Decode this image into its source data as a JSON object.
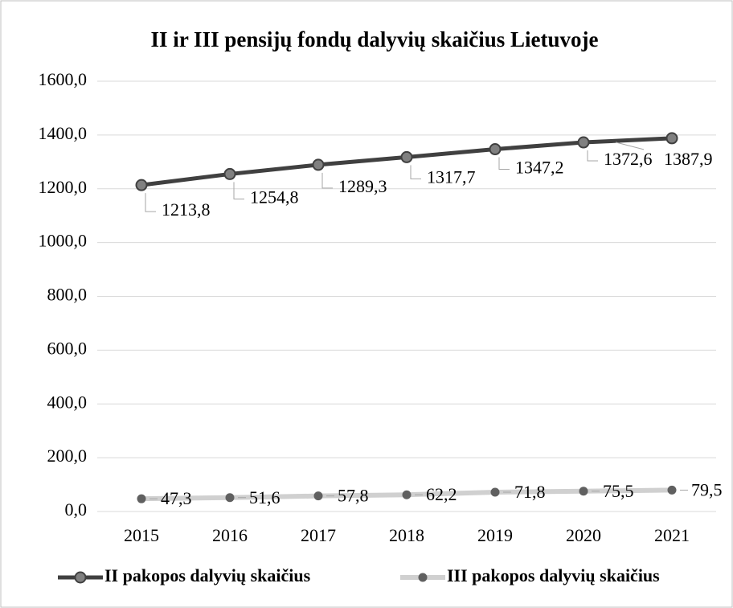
{
  "chart_data": {
    "type": "line",
    "title": "II ir III pensijų fondų dalyvių skaičius Lietuvoje",
    "categories": [
      "2015",
      "2016",
      "2017",
      "2018",
      "2019",
      "2020",
      "2021"
    ],
    "series": [
      {
        "name": "II pakopos dalyvių skaičius",
        "color": "#404040",
        "marker_color": "#808080",
        "values": [
          1213.8,
          1254.8,
          1289.3,
          1317.7,
          1347.2,
          1372.6,
          1387.9
        ],
        "value_labels": [
          "1213,8",
          "1254,8",
          "1289,3",
          "1317,7",
          "1347,2",
          "1372,6",
          "1387,9"
        ]
      },
      {
        "name": "III pakopos dalyvių skaičius",
        "color": "#d0d0d0",
        "marker_color": "#606060",
        "values": [
          47.3,
          51.6,
          57.8,
          62.2,
          71.8,
          75.5,
          79.5
        ],
        "value_labels": [
          "47,3",
          "51,6",
          "57,8",
          "62,2",
          "71,8",
          "75,5",
          "79,5"
        ]
      }
    ],
    "ylim": [
      0,
      1600
    ],
    "yticks": [
      {
        "value": 0,
        "label": "0,0"
      },
      {
        "value": 200,
        "label": "200,0"
      },
      {
        "value": 400,
        "label": "400,0"
      },
      {
        "value": 600,
        "label": "600,0"
      },
      {
        "value": 800,
        "label": "800,0"
      },
      {
        "value": 1000,
        "label": "1000,0"
      },
      {
        "value": 1200,
        "label": "1200,0"
      },
      {
        "value": 1400,
        "label": "1400,0"
      },
      {
        "value": 1600,
        "label": "1600,0"
      }
    ],
    "grid": true,
    "legend": "bottom"
  }
}
